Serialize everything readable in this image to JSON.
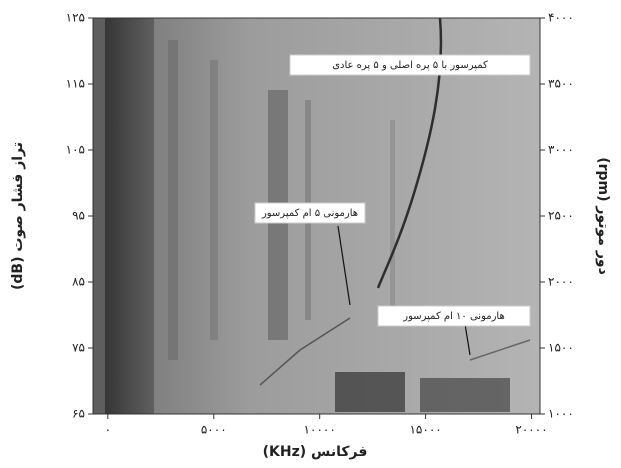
{
  "chart_data": {
    "type": "spectrogram",
    "xlabel": "فرکانس (KHz)",
    "ylabel": "تراز فشار صوت (dB)",
    "y2label": "دور موتور (rpm)",
    "xlim": [
      -700,
      20400
    ],
    "xticks": [
      {
        "value": 0,
        "label": "۰"
      },
      {
        "value": 5000,
        "label": "۵۰۰۰"
      },
      {
        "value": 10000,
        "label": "۱۰۰۰۰"
      },
      {
        "value": 15000,
        "label": "۱۵۰۰۰"
      },
      {
        "value": 20000,
        "label": "۲۰۰۰۰"
      }
    ],
    "ylim": [
      65,
      125
    ],
    "yticks": [
      {
        "value": 65,
        "label": "۶۵"
      },
      {
        "value": 75,
        "label": "۷۵"
      },
      {
        "value": 85,
        "label": "۸۵"
      },
      {
        "value": 95,
        "label": "۹۵"
      },
      {
        "value": 105,
        "label": "۱۰۵"
      },
      {
        "value": 115,
        "label": "۱۱۵"
      },
      {
        "value": 125,
        "label": "۱۲۵"
      }
    ],
    "y2lim": [
      1000,
      4000
    ],
    "y2ticks": [
      {
        "value": 1000,
        "label": "۱۰۰۰"
      },
      {
        "value": 1500,
        "label": "۱۵۰۰"
      },
      {
        "value": 2000,
        "label": "۲۰۰۰"
      },
      {
        "value": 2500,
        "label": "۲۵۰۰"
      },
      {
        "value": 3000,
        "label": "۳۰۰۰"
      },
      {
        "value": 3500,
        "label": "۳۵۰۰"
      },
      {
        "value": 4000,
        "label": "۴۰۰۰"
      }
    ],
    "annotations": [
      {
        "text": "کمپرسور با ۵ پره اصلی و ۵ پره عادی"
      },
      {
        "text": "هارمونی ۵ ام کمپرسور"
      },
      {
        "text": "هارمونی ۱۰ ام کمپرسور"
      }
    ]
  }
}
